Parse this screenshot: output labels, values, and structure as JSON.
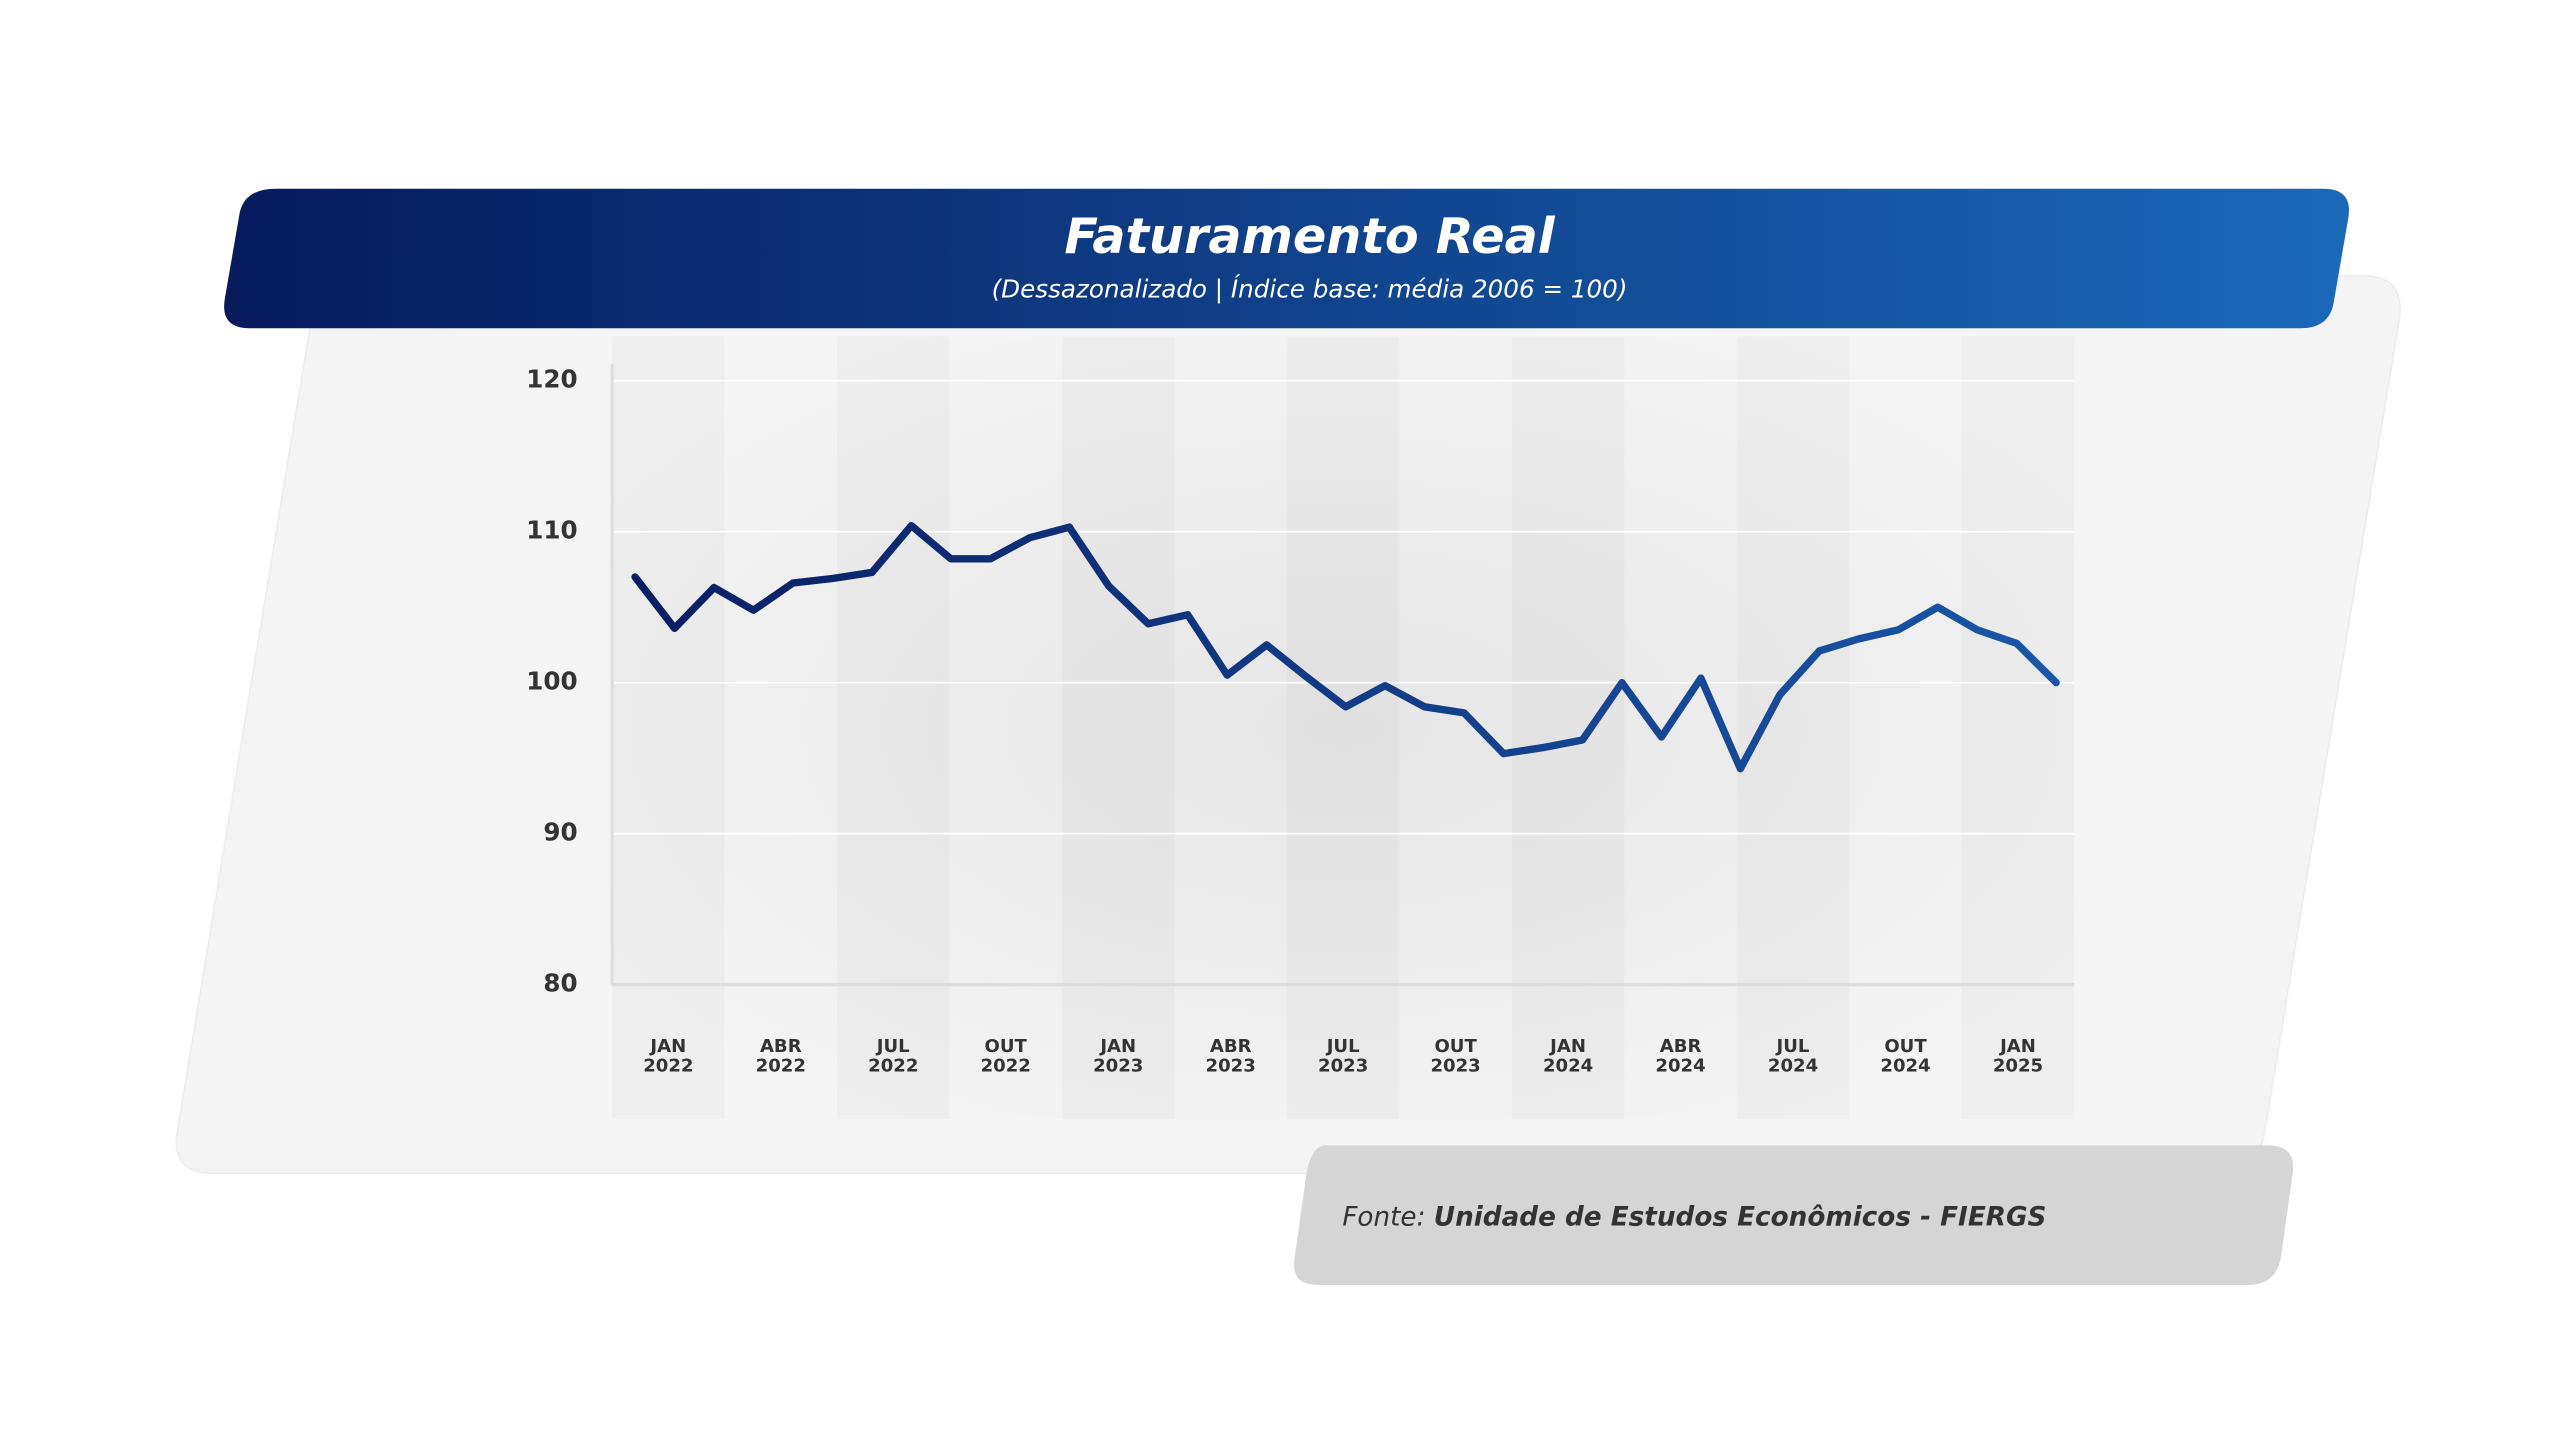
{
  "header": {
    "title": "Faturamento Real",
    "subtitle": "(Dessazonalizado | Índice base: média 2006 = 100)"
  },
  "chart_data": {
    "type": "line",
    "categories": [
      "JAN 2022",
      null,
      null,
      "ABR 2022",
      null,
      null,
      "JUL 2022",
      null,
      null,
      "OUT 2022",
      null,
      null,
      "JAN 2023",
      null,
      null,
      "ABR 2023",
      null,
      null,
      "JUL 2023",
      null,
      null,
      "OUT 2023",
      null,
      null,
      "JAN 2024",
      null,
      null,
      "ABR 2024",
      null,
      null,
      "JUL 2024",
      null,
      null,
      "OUT 2024",
      null,
      null,
      "JAN 2025"
    ],
    "series": [
      {
        "name": "Faturamento Real",
        "color": "#0d2a78",
        "values": [
          107.0,
          103.6,
          106.3,
          104.8,
          106.6,
          106.9,
          107.3,
          110.4,
          108.2,
          108.2,
          109.6,
          110.3,
          106.4,
          103.9,
          104.5,
          100.5,
          102.5,
          100.4,
          98.4,
          99.8,
          98.4,
          98.0,
          95.3,
          95.7,
          96.2,
          100.0,
          96.4,
          100.3,
          94.3,
          99.2,
          102.1,
          102.9,
          103.5,
          105.0,
          103.5,
          102.6,
          100.0
        ]
      }
    ],
    "ylim": [
      80,
      120
    ],
    "yticks": [
      80,
      90,
      100,
      110,
      120
    ],
    "grid": true
  },
  "footer": {
    "prefix": "Fonte:",
    "source": "Unidade de Estudos Econômicos - FIERGS"
  }
}
